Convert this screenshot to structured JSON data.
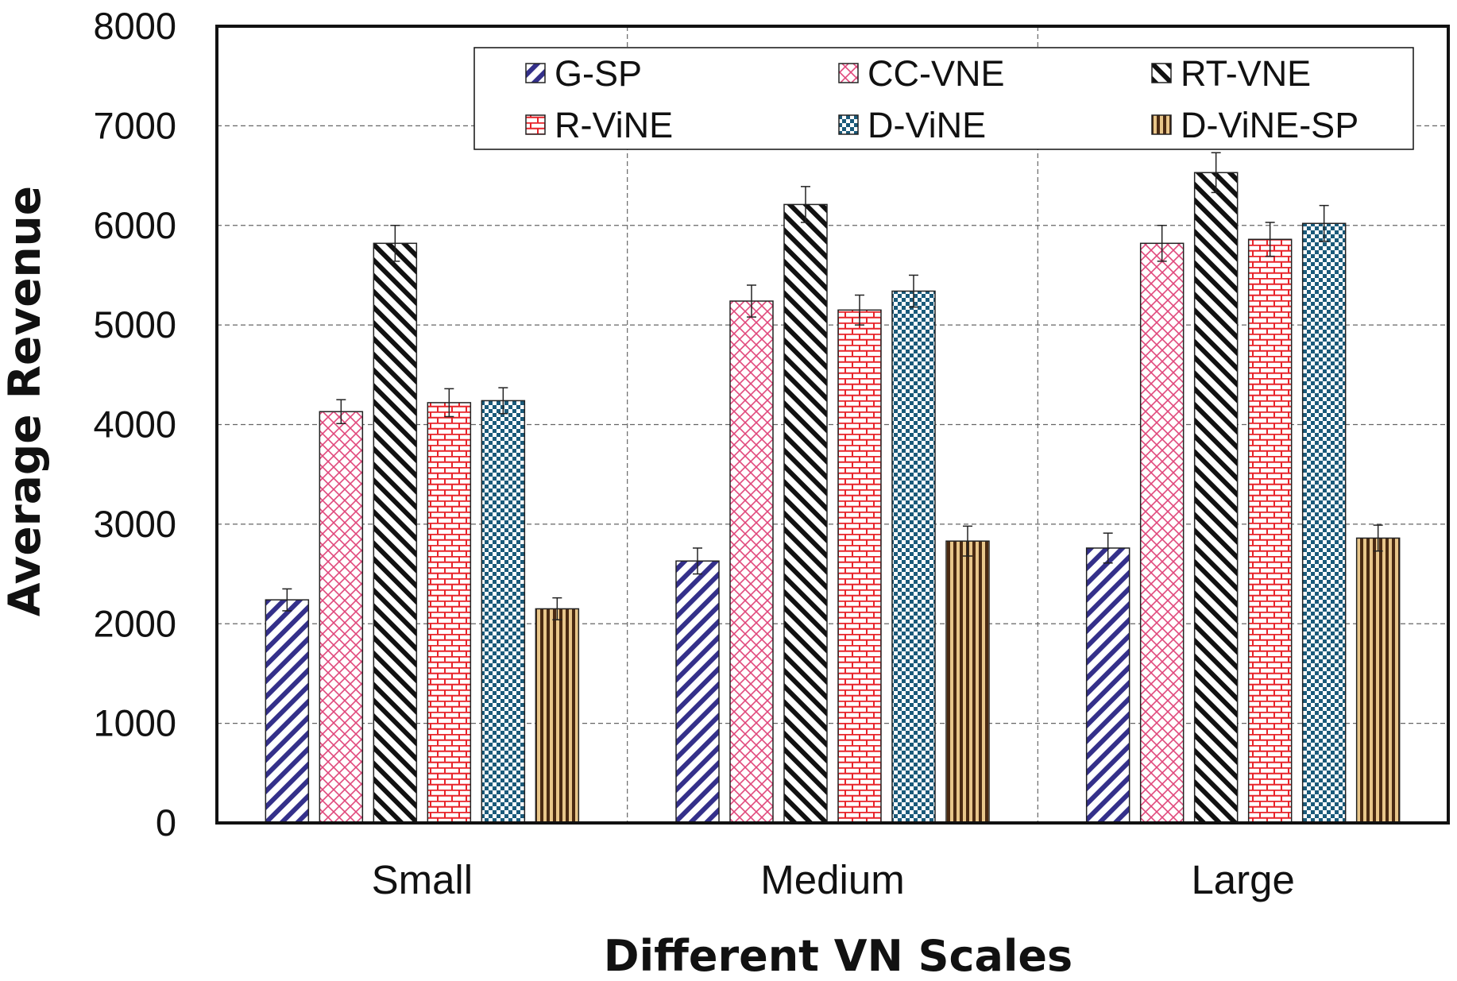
{
  "chart_data": {
    "type": "bar",
    "title": "",
    "xlabel": "Different VN Scales",
    "ylabel": "Average Revenue",
    "categories": [
      "Small",
      "Medium",
      "Large"
    ],
    "ylim": [
      0,
      8000
    ],
    "yticks": [
      "0",
      "1000",
      "2000",
      "3000",
      "4000",
      "5000",
      "6000",
      "7000",
      "8000"
    ],
    "grid": true,
    "legend_position": "top",
    "series": [
      {
        "name": "G-SP",
        "values": [
          2240,
          2630,
          2760
        ],
        "errors": [
          110,
          130,
          150
        ],
        "pattern": "diagonal-right",
        "color": "#34308a"
      },
      {
        "name": "CC-VNE",
        "values": [
          4130,
          5240,
          5820
        ],
        "errors": [
          120,
          160,
          180
        ],
        "pattern": "crosshatch",
        "color": "#e0487c"
      },
      {
        "name": "RT-VNE",
        "values": [
          5820,
          6210,
          6530
        ],
        "errors": [
          180,
          180,
          200
        ],
        "pattern": "diagonal-left",
        "color": "#111111"
      },
      {
        "name": "R-ViNE",
        "values": [
          4220,
          5150,
          5860
        ],
        "errors": [
          140,
          150,
          170
        ],
        "pattern": "brick",
        "color": "#e8242a"
      },
      {
        "name": "D-ViNE",
        "values": [
          4240,
          5340,
          6020
        ],
        "errors": [
          130,
          160,
          180
        ],
        "pattern": "checker",
        "color": "#1a5a7a"
      },
      {
        "name": "D-ViNE-SP",
        "values": [
          2150,
          2830,
          2860
        ],
        "errors": [
          110,
          150,
          130
        ],
        "pattern": "vertical",
        "color": "#4a2a12"
      }
    ]
  }
}
